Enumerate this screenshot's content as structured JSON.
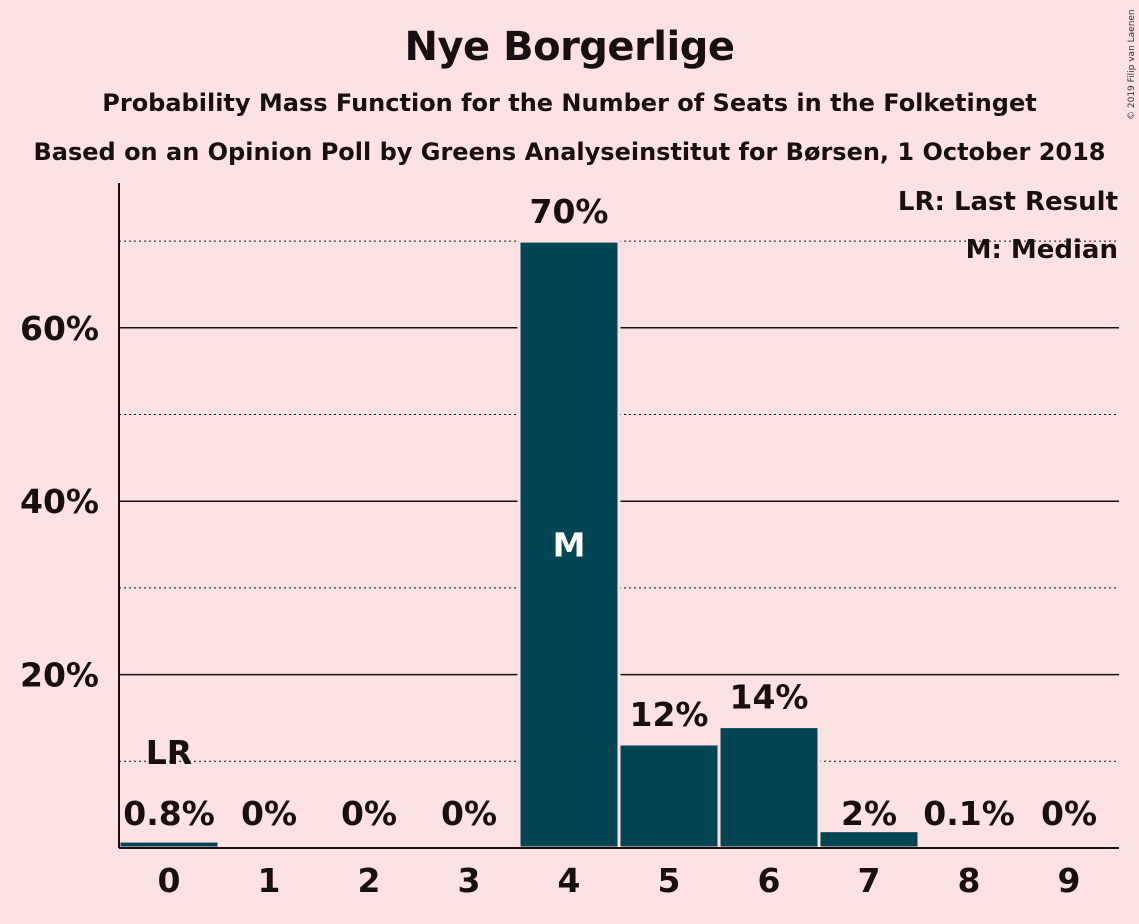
{
  "chart_data": {
    "type": "bar",
    "title": "Nye Borgerlige",
    "subtitle": "Probability Mass Function for the Number of Seats in the Folketinget",
    "subtitle2": "Based on an Opinion Poll by Greens Analyseinstitut for Børsen, 1 October 2018",
    "categories": [
      "0",
      "1",
      "2",
      "3",
      "4",
      "5",
      "6",
      "7",
      "8",
      "9"
    ],
    "values": [
      0.8,
      0,
      0,
      0,
      70,
      12,
      14,
      2,
      0.1,
      0
    ],
    "value_labels": [
      "0.8%",
      "0%",
      "0%",
      "0%",
      "70%",
      "12%",
      "14%",
      "2%",
      "0.1%",
      "0%"
    ],
    "yticks": [
      20,
      40,
      60
    ],
    "ytick_labels": [
      "20%",
      "40%",
      "60%"
    ],
    "minor_gridlines": [
      10,
      30,
      50,
      70
    ],
    "ylim": [
      0,
      76.5
    ],
    "last_result_category": "0",
    "last_result_marker": "LR",
    "median_category": "4",
    "median_marker": "M",
    "legend": [
      "LR: Last Result",
      "M: Median"
    ],
    "legend_position": "top-right",
    "bar_color": "#034553",
    "background_color": "#FDE2E4"
  },
  "copyright": "© 2019 Filip van Laenen"
}
